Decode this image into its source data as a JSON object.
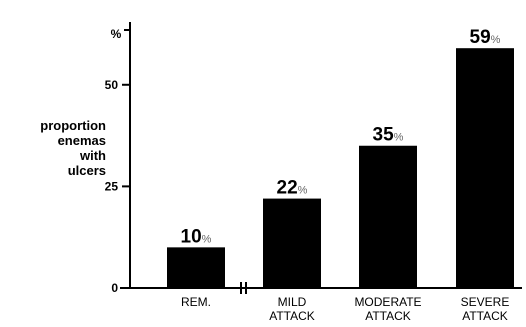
{
  "chart_data": {
    "type": "bar",
    "categories": [
      [
        "REM."
      ],
      [
        "MILD",
        "ATTACK"
      ],
      [
        "MODERATE",
        "ATTACK"
      ],
      [
        "SEVERE",
        "ATTACK"
      ]
    ],
    "values": [
      10,
      22,
      35,
      59
    ],
    "value_labels": [
      {
        "num": "10",
        "unit": "%"
      },
      {
        "num": "22",
        "unit": "%"
      },
      {
        "num": "35",
        "unit": "%"
      },
      {
        "num": "59",
        "unit": "%"
      }
    ],
    "ylabel_lines": [
      "proportion",
      "enemas",
      "with",
      "ulcers"
    ],
    "y_unit": "%",
    "y_ticks": [
      0,
      25,
      50
    ],
    "ylim": [
      0,
      62
    ],
    "axis_break_between": [
      0,
      1
    ],
    "grid": false,
    "bar_color": "#000000"
  }
}
